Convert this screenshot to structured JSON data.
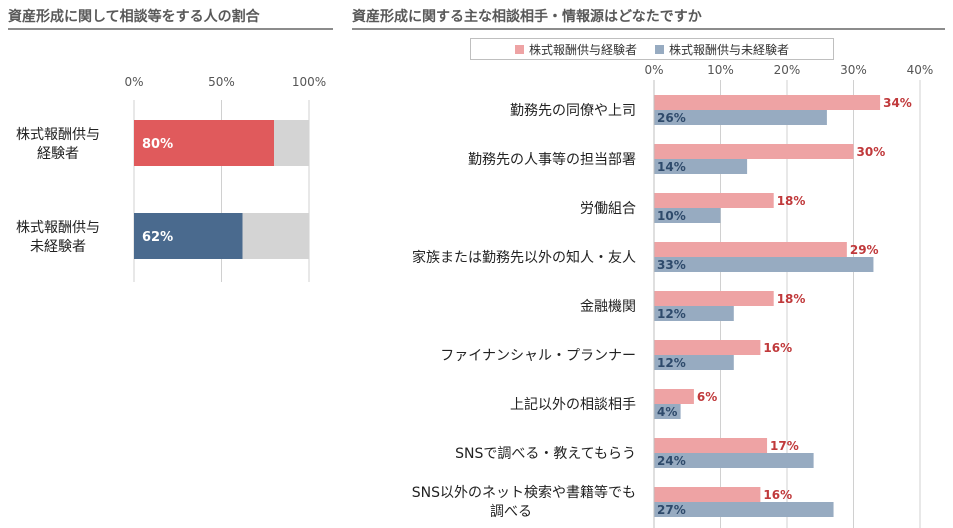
{
  "left_chart": {
    "title": "資産形成に関して相談等をする人の割合",
    "chart_data": {
      "type": "bar",
      "orientation": "horizontal",
      "stacked_to_100": true,
      "categories": [
        "株式報酬供与\n経験者",
        "株式報酬供与\n未経験者"
      ],
      "values": [
        80,
        62
      ],
      "value_labels": [
        "80%",
        "62%"
      ],
      "xlim": [
        0,
        100
      ],
      "xticks": [
        "0%",
        "50%",
        "100%"
      ],
      "grid": true,
      "colors": {
        "experienced": "#e05a5c",
        "not_experienced": "#4a6a8e",
        "remainder": "#d4d4d4"
      }
    }
  },
  "right_chart": {
    "title": "資産形成に関する主な相談相手・情報源はどなたですか",
    "chart_data": {
      "type": "bar",
      "orientation": "horizontal",
      "categories": [
        "勤務先の同僚や上司",
        "勤務先の人事等の担当部署",
        "労働組合",
        "家族または勤務先以外の知人・友人",
        "金融機関",
        "ファイナンシャル・プランナー",
        "上記以外の相談相手",
        "SNSで調べる・教えてもらう",
        "SNS以外のネット検索や書籍等でも\n調べる"
      ],
      "series": [
        {
          "name": "株式報酬供与経験者",
          "color": "#eea3a4",
          "label_color": "#c0393b",
          "values": [
            34,
            30,
            18,
            29,
            18,
            16,
            6,
            17,
            16
          ],
          "value_labels": [
            "34%",
            "30%",
            "18%",
            "29%",
            "18%",
            "16%",
            "6%",
            "17%",
            "16%"
          ]
        },
        {
          "name": "株式報酬供与未経験者",
          "color": "#97abc1",
          "label_color": "#2e4a6b",
          "values": [
            26,
            14,
            10,
            33,
            12,
            12,
            4,
            24,
            27
          ],
          "value_labels": [
            "26%",
            "14%",
            "10%",
            "33%",
            "12%",
            "12%",
            "4%",
            "24%",
            "27%"
          ]
        }
      ],
      "xlim": [
        0,
        40
      ],
      "xticks": [
        "0%",
        "10%",
        "20%",
        "30%",
        "40%"
      ],
      "grid": true,
      "legend_position": "top"
    }
  }
}
